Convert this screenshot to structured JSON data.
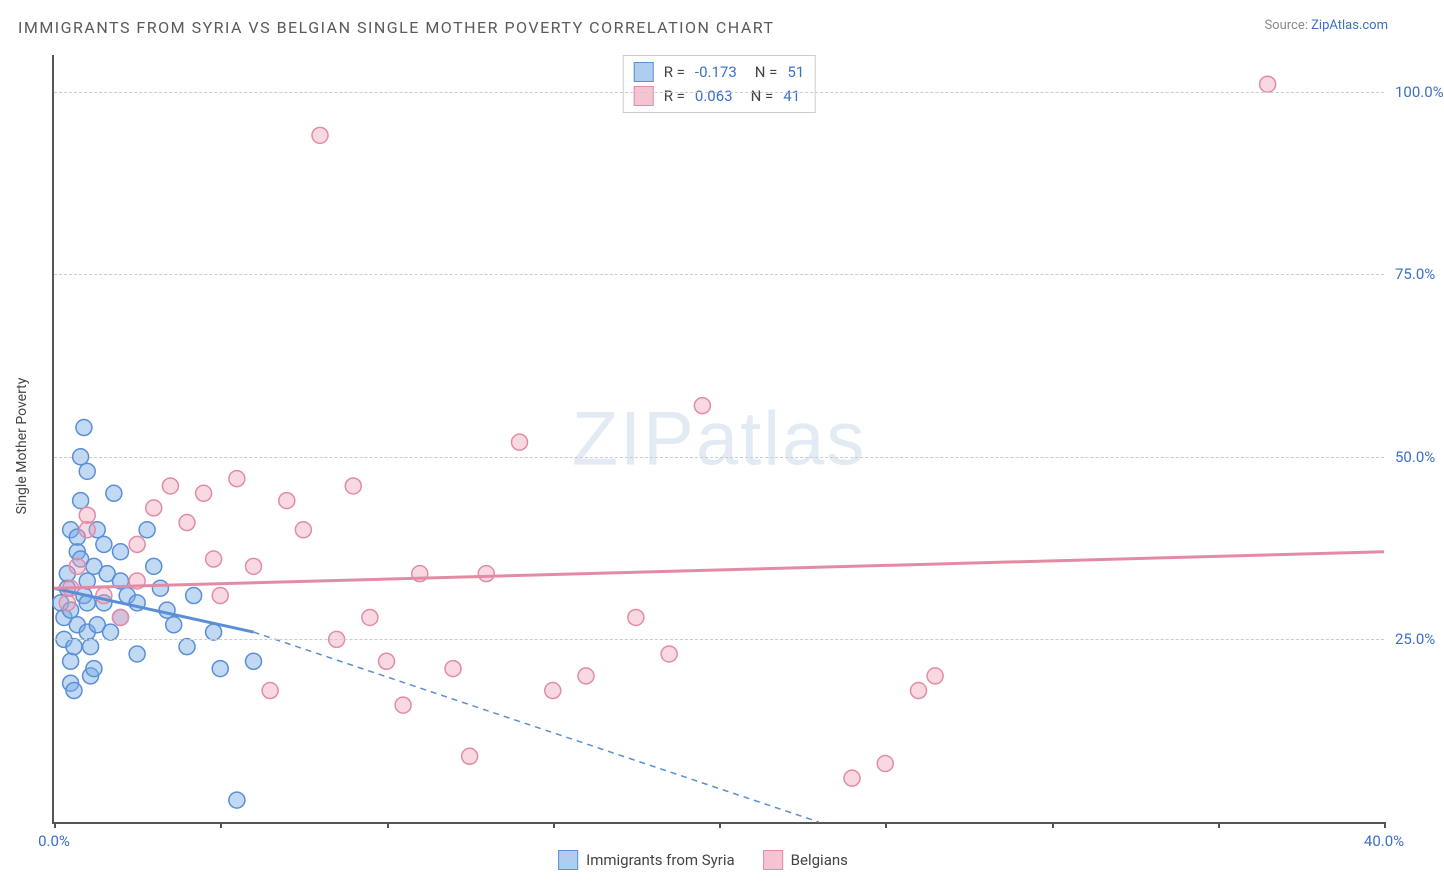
{
  "title": "IMMIGRANTS FROM SYRIA VS BELGIAN SINGLE MOTHER POVERTY CORRELATION CHART",
  "source_label": "Source:",
  "source_name": "ZipAtlas.com",
  "watermark": {
    "bold": "ZIP",
    "thin": "atlas"
  },
  "y_axis_label": "Single Mother Poverty",
  "plot": {
    "type": "scatter",
    "xlim": [
      0,
      40
    ],
    "ylim": [
      0,
      105
    ],
    "x_ticks": [
      0,
      5,
      10,
      15,
      20,
      25,
      30,
      35,
      40
    ],
    "x_tick_labels": {
      "0": "0.0%",
      "40": "40.0%"
    },
    "y_gridlines": [
      25,
      50,
      75,
      100
    ],
    "y_tick_labels": {
      "25": "25.0%",
      "50": "50.0%",
      "75": "75.0%",
      "100": "100.0%"
    },
    "background": "#ffffff",
    "grid_color": "#cccccc",
    "axis_color": "#555555",
    "label_color": "#3b6fc9",
    "marker_radius": 8,
    "marker_stroke_width": 1.5,
    "regression_width": 3,
    "dash_pattern": "6,5"
  },
  "series": [
    {
      "name": "Immigrants from Syria",
      "color_fill": "rgba(120,170,230,0.45)",
      "color_stroke": "#5a8fd6",
      "swatch_fill": "#aecdf0",
      "swatch_stroke": "#5a8fd6",
      "R": "-0.173",
      "N": "51",
      "regression": {
        "x1": 0,
        "y1": 32,
        "x2": 6,
        "y2": 26,
        "extrap_x2": 23,
        "extrap_y2": 0
      },
      "points": [
        [
          0.2,
          30
        ],
        [
          0.3,
          25
        ],
        [
          0.3,
          28
        ],
        [
          0.4,
          32
        ],
        [
          0.4,
          34
        ],
        [
          0.5,
          40
        ],
        [
          0.5,
          29
        ],
        [
          0.5,
          22
        ],
        [
          0.5,
          19
        ],
        [
          0.6,
          18
        ],
        [
          0.6,
          24
        ],
        [
          0.7,
          37
        ],
        [
          0.7,
          39
        ],
        [
          0.7,
          27
        ],
        [
          0.8,
          36
        ],
        [
          0.8,
          44
        ],
        [
          0.8,
          50
        ],
        [
          0.9,
          54
        ],
        [
          0.9,
          31
        ],
        [
          1.0,
          48
        ],
        [
          1.0,
          33
        ],
        [
          1.0,
          30
        ],
        [
          1.0,
          26
        ],
        [
          1.1,
          24
        ],
        [
          1.1,
          20
        ],
        [
          1.2,
          21
        ],
        [
          1.2,
          35
        ],
        [
          1.3,
          27
        ],
        [
          1.3,
          40
        ],
        [
          1.5,
          38
        ],
        [
          1.5,
          30
        ],
        [
          1.6,
          34
        ],
        [
          1.7,
          26
        ],
        [
          1.8,
          45
        ],
        [
          2.0,
          28
        ],
        [
          2.0,
          37
        ],
        [
          2.0,
          33
        ],
        [
          2.2,
          31
        ],
        [
          2.5,
          30
        ],
        [
          2.5,
          23
        ],
        [
          2.8,
          40
        ],
        [
          3.0,
          35
        ],
        [
          3.2,
          32
        ],
        [
          3.4,
          29
        ],
        [
          3.6,
          27
        ],
        [
          4.0,
          24
        ],
        [
          4.2,
          31
        ],
        [
          4.8,
          26
        ],
        [
          5.0,
          21
        ],
        [
          5.5,
          3
        ],
        [
          6.0,
          22
        ]
      ]
    },
    {
      "name": "Belgians",
      "color_fill": "rgba(240,160,180,0.40)",
      "color_stroke": "#e38ba5",
      "swatch_fill": "#f5c4d2",
      "swatch_stroke": "#e38ba5",
      "R": "0.063",
      "N": "41",
      "regression": {
        "x1": 0,
        "y1": 32,
        "x2": 40,
        "y2": 37
      },
      "points": [
        [
          0.4,
          30
        ],
        [
          0.5,
          32
        ],
        [
          0.7,
          35
        ],
        [
          1.0,
          42
        ],
        [
          1.0,
          40
        ],
        [
          1.5,
          31
        ],
        [
          2.0,
          28
        ],
        [
          2.5,
          33
        ],
        [
          2.5,
          38
        ],
        [
          3.0,
          43
        ],
        [
          3.5,
          46
        ],
        [
          4.0,
          41
        ],
        [
          4.5,
          45
        ],
        [
          4.8,
          36
        ],
        [
          5.0,
          31
        ],
        [
          5.5,
          47
        ],
        [
          6.0,
          35
        ],
        [
          6.5,
          18
        ],
        [
          7.0,
          44
        ],
        [
          7.5,
          40
        ],
        [
          8.0,
          94
        ],
        [
          8.5,
          25
        ],
        [
          9.0,
          46
        ],
        [
          9.5,
          28
        ],
        [
          10.0,
          22
        ],
        [
          10.5,
          16
        ],
        [
          11.0,
          34
        ],
        [
          12.0,
          21
        ],
        [
          12.5,
          9
        ],
        [
          13.0,
          34
        ],
        [
          14.0,
          52
        ],
        [
          15.0,
          18
        ],
        [
          16.0,
          20
        ],
        [
          17.5,
          28
        ],
        [
          18.5,
          23
        ],
        [
          19.5,
          57
        ],
        [
          24.0,
          6
        ],
        [
          25.0,
          8
        ],
        [
          26.0,
          18
        ],
        [
          26.5,
          20
        ],
        [
          36.5,
          101
        ]
      ]
    }
  ],
  "legend_bottom": [
    {
      "label": "Immigrants from Syria",
      "series": 0
    },
    {
      "label": "Belgians",
      "series": 1
    }
  ]
}
